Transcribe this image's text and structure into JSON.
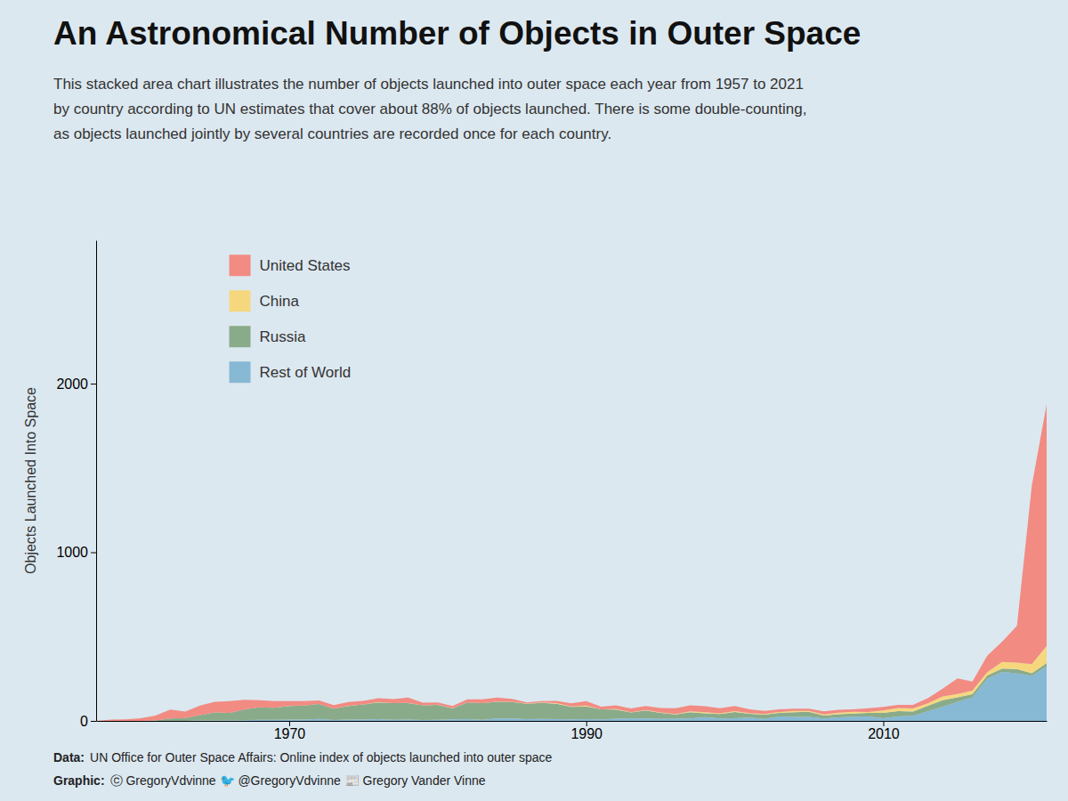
{
  "chart_data": {
    "type": "stacked_area",
    "title": "An Astronomical Number of Objects in Outer Space",
    "subtitle": "This stacked area chart illustrates the number of objects launched into outer space each year from 1957 to 2021\nby country according to UN estimates that cover about 88% of objects launched. There is some double-counting,\nas objects launched jointly by several countries are recorded once for each country.",
    "ylabel": "Objects Launched Into Space",
    "annotations": [
      "Data:",
      "UN Office for Outer Space Affairs: Online index of objects launched into outer space",
      "Graphic:",
      "ⓒ GregoryVdvinne    🐦 @GregoryVdvinne    📰 Gregory Vander Vinne"
    ],
    "background_color": "#dce8f0",
    "stacked": true,
    "grid": false,
    "legend": "upper left",
    "xlim": [
      1957,
      2021
    ],
    "xticks": [
      1970,
      1990,
      2010
    ],
    "ylim": [
      0,
      2850
    ],
    "yticks": [
      0,
      1000,
      2000
    ],
    "x": [
      1957,
      1958,
      1959,
      1960,
      1961,
      1962,
      1963,
      1964,
      1965,
      1966,
      1967,
      1968,
      1969,
      1970,
      1971,
      1972,
      1973,
      1974,
      1975,
      1976,
      1977,
      1978,
      1979,
      1980,
      1981,
      1982,
      1983,
      1984,
      1985,
      1986,
      1987,
      1988,
      1989,
      1990,
      1991,
      1992,
      1993,
      1994,
      1995,
      1996,
      1997,
      1998,
      1999,
      2000,
      2001,
      2002,
      2003,
      2004,
      2005,
      2006,
      2007,
      2008,
      2009,
      2010,
      2011,
      2012,
      2013,
      2014,
      2015,
      2016,
      2017,
      2018,
      2019,
      2020,
      2021
    ],
    "series": [
      {
        "name": "Rest of World",
        "color": "#87b8d4",
        "values": [
          0,
          0,
          0,
          0,
          0,
          0,
          0,
          2,
          2,
          3,
          4,
          6,
          7,
          8,
          8,
          12,
          5,
          8,
          8,
          11,
          7,
          8,
          5,
          6,
          9,
          11,
          7,
          15,
          14,
          10,
          12,
          11,
          9,
          11,
          9,
          13,
          15,
          14,
          12,
          13,
          15,
          22,
          14,
          16,
          20,
          12,
          26,
          24,
          24,
          15,
          21,
          25,
          27,
          16,
          27,
          31,
          57,
          85,
          114,
          138,
          249,
          290,
          282,
          267,
          323
        ]
      },
      {
        "name": "Russia",
        "color": "#8aab8a",
        "values": [
          0,
          0,
          0,
          0,
          3,
          15,
          17,
          32,
          48,
          44,
          65,
          74,
          71,
          81,
          83,
          88,
          67,
          81,
          89,
          99,
          98,
          98,
          87,
          89,
          65,
          98,
          98,
          98,
          98,
          91,
          95,
          90,
          74,
          75,
          59,
          54,
          35,
          48,
          36,
          25,
          36,
          23,
          27,
          37,
          22,
          25,
          21,
          27,
          30,
          17,
          18,
          18,
          20,
          31,
          31,
          24,
          33,
          38,
          26,
          20,
          20,
          20,
          25,
          15,
          20
        ]
      },
      {
        "name": "China",
        "color": "#f5d87e",
        "values": [
          0,
          0,
          0,
          0,
          0,
          0,
          0,
          0,
          0,
          0,
          0,
          0,
          0,
          1,
          0,
          0,
          1,
          1,
          0,
          2,
          0,
          1,
          0,
          1,
          1,
          1,
          1,
          2,
          1,
          2,
          2,
          4,
          3,
          5,
          0,
          4,
          1,
          2,
          2,
          3,
          6,
          6,
          4,
          5,
          4,
          4,
          6,
          8,
          5,
          6,
          10,
          11,
          6,
          15,
          19,
          19,
          14,
          22,
          19,
          22,
          20,
          39,
          39,
          55,
          101
        ]
      },
      {
        "name": "United States",
        "color": "#f28b82",
        "values": [
          0,
          8,
          9,
          16,
          29,
          52,
          38,
          57,
          63,
          70,
          57,
          43,
          40,
          27,
          27,
          21,
          21,
          22,
          22,
          22,
          24,
          32,
          16,
          14,
          14,
          18,
          22,
          24,
          17,
          7,
          8,
          14,
          18,
          27,
          17,
          22,
          23,
          24,
          27,
          34,
          36,
          36,
          30,
          30,
          23,
          18,
          16,
          13,
          14,
          19,
          17,
          15,
          22,
          21,
          18,
          21,
          30,
          46,
          93,
          53,
          97,
          121,
          218,
          1058,
          1434
        ]
      }
    ]
  }
}
